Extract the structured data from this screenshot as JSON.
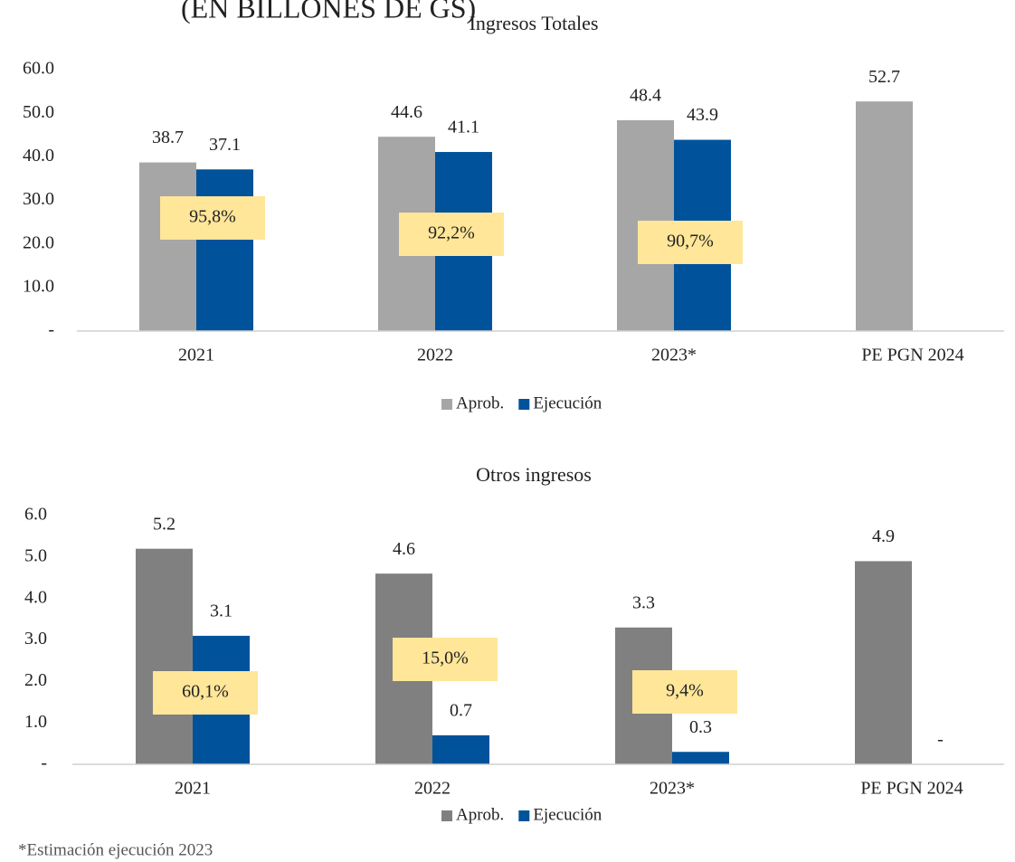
{
  "page_title": "(EN BILLONES DE GS)",
  "footnote": "*Estimación ejecución 2023",
  "chart_data": [
    {
      "type": "bar",
      "title": "Ingresos Totales",
      "categories": [
        "2021",
        "2022",
        "2023*",
        "PE PGN 2024"
      ],
      "series": [
        {
          "name": "Aprob.",
          "color": "#a6a6a6",
          "values": [
            38.7,
            44.6,
            48.4,
            52.7
          ]
        },
        {
          "name": "Ejecución",
          "color": "#00529b",
          "values": [
            37.1,
            41.1,
            43.9,
            null
          ]
        }
      ],
      "annotations": [
        "95,8%",
        "92,2%",
        "90,7%"
      ],
      "ylim": [
        0,
        60
      ],
      "yticks": [
        {
          "value": 0,
          "label": "-"
        },
        {
          "value": 10,
          "label": "10.0"
        },
        {
          "value": 20,
          "label": "20.0"
        },
        {
          "value": 30,
          "label": "30.0"
        },
        {
          "value": 40,
          "label": "40.0"
        },
        {
          "value": 50,
          "label": "50.0"
        },
        {
          "value": 60,
          "label": "60.0"
        }
      ],
      "grid": false,
      "legend": "bottom"
    },
    {
      "type": "bar",
      "title": "Otros ingresos",
      "categories": [
        "2021",
        "2022",
        "2023*",
        "PE PGN 2024"
      ],
      "series": [
        {
          "name": "Aprob.",
          "color": "#808080",
          "values": [
            5.2,
            4.6,
            3.3,
            4.9
          ]
        },
        {
          "name": "Ejecución",
          "color": "#00529b",
          "values": [
            3.1,
            0.7,
            0.3,
            0
          ],
          "value_labels": [
            "3.1",
            "0.7",
            "0.3",
            "-"
          ]
        }
      ],
      "annotations": [
        "60,1%",
        "15,0%",
        "9,4%"
      ],
      "ylim": [
        0,
        6
      ],
      "yticks": [
        {
          "value": 0,
          "label": "-"
        },
        {
          "value": 1,
          "label": "1.0"
        },
        {
          "value": 2,
          "label": "2.0"
        },
        {
          "value": 3,
          "label": "3.0"
        },
        {
          "value": 4,
          "label": "4.0"
        },
        {
          "value": 5,
          "label": "5.0"
        },
        {
          "value": 6,
          "label": "6.0"
        }
      ],
      "grid": false,
      "legend": "bottom"
    }
  ]
}
